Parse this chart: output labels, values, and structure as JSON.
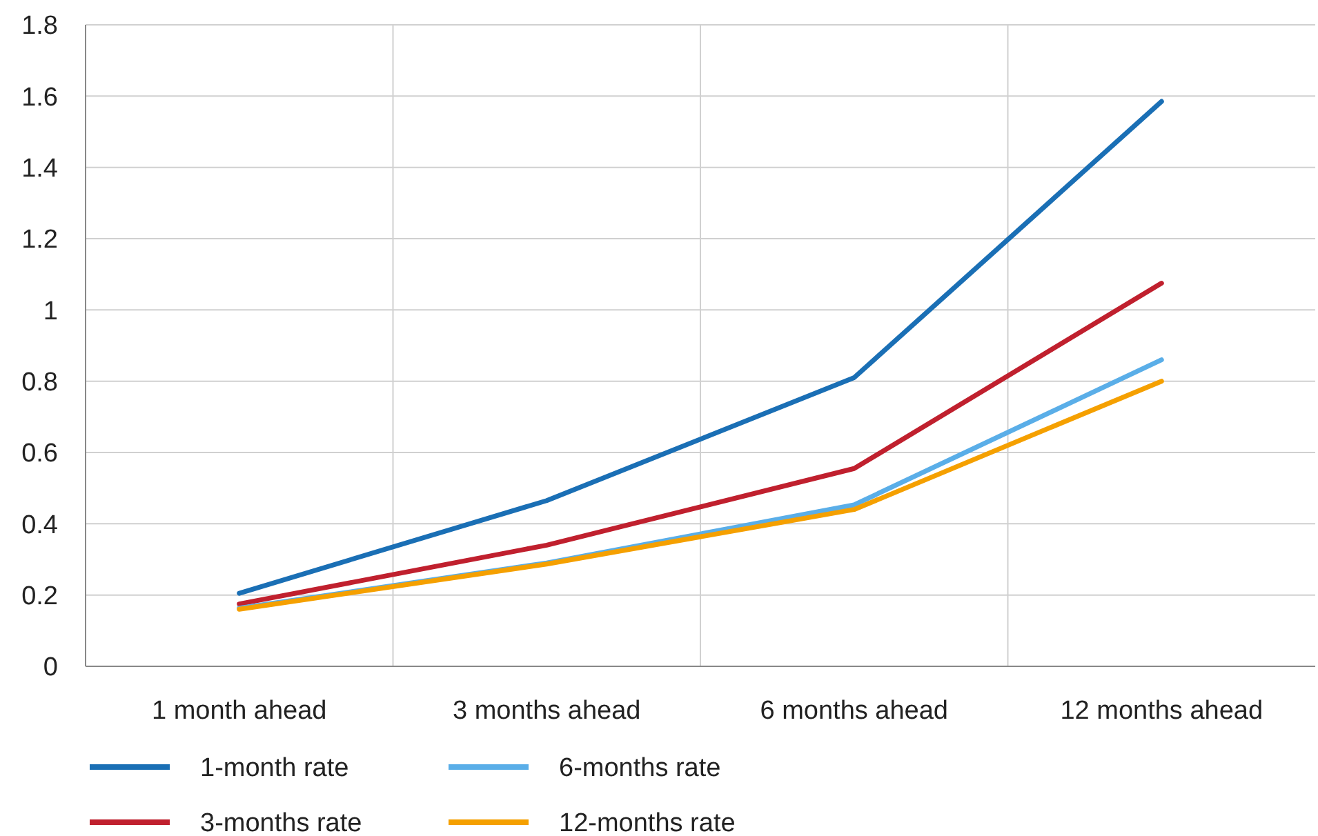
{
  "chart_data": {
    "type": "line",
    "categories": [
      "1 month ahead",
      "3 months ahead",
      "6 months ahead",
      "12 months ahead"
    ],
    "series": [
      {
        "name": "1-month rate",
        "color": "#1a6fb5",
        "values": [
          0.205,
          0.465,
          0.81,
          1.585
        ]
      },
      {
        "name": "3-months rate",
        "color": "#c0202e",
        "values": [
          0.175,
          0.34,
          0.555,
          1.075
        ]
      },
      {
        "name": "6-months rate",
        "color": "#5aaee8",
        "values": [
          0.163,
          0.29,
          0.453,
          0.86
        ]
      },
      {
        "name": "12-months rate",
        "color": "#f5a000",
        "values": [
          0.16,
          0.287,
          0.44,
          0.8
        ]
      }
    ],
    "ylim": [
      0,
      1.8
    ],
    "yticks": [
      0,
      0.2,
      0.4,
      0.6,
      0.8,
      1,
      1.2,
      1.4,
      1.6,
      1.8
    ],
    "grid": true,
    "legend": "bottom",
    "marker": "none",
    "line_style": "solid"
  }
}
